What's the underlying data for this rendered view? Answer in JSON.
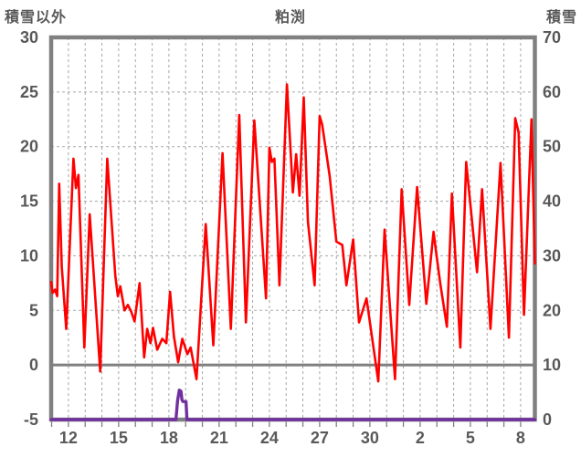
{
  "header": {
    "left_axis_title": "積雪以外",
    "chart_title": "粕渕",
    "right_axis_title": "積雪"
  },
  "chart_data": {
    "type": "line",
    "title": "粕渕",
    "left_axis": {
      "label": "積雪以外",
      "min": -5,
      "max": 30,
      "tick_step": 5,
      "tick_labels": [
        "30",
        "25",
        "20",
        "15",
        "10",
        "5",
        "0",
        "-5"
      ],
      "zero_line": true
    },
    "right_axis": {
      "label": "積雪",
      "min": 0,
      "max": 70,
      "tick_step": 10,
      "tick_labels": [
        "70",
        "60",
        "50",
        "40",
        "30",
        "20",
        "10",
        "0"
      ]
    },
    "x_axis": {
      "day_min": 10.97,
      "day_max": 39.85,
      "gridline_every_day": true,
      "labels": [
        {
          "day": 12,
          "text": "12"
        },
        {
          "day": 15,
          "text": "15"
        },
        {
          "day": 18,
          "text": "18"
        },
        {
          "day": 21,
          "text": "21"
        },
        {
          "day": 24,
          "text": "24"
        },
        {
          "day": 27,
          "text": "27"
        },
        {
          "day": 30,
          "text": "30"
        },
        {
          "day": 33,
          "text": "2"
        },
        {
          "day": 36,
          "text": "5"
        },
        {
          "day": 39,
          "text": "8"
        }
      ]
    },
    "series": [
      {
        "name": "snow-depth",
        "axis": "right",
        "color": "#7030A0",
        "width": 3.4,
        "points": [
          [
            10.97,
            0
          ],
          [
            18.42,
            0
          ],
          [
            18.52,
            3.5
          ],
          [
            18.62,
            5.4
          ],
          [
            18.72,
            5.2
          ],
          [
            18.78,
            3.6
          ],
          [
            18.84,
            3.3
          ],
          [
            19.02,
            3.3
          ],
          [
            19.08,
            0
          ],
          [
            39.85,
            0
          ]
        ]
      },
      {
        "name": "temperature",
        "axis": "left",
        "color": "#FF0000",
        "width": 2.6,
        "points": [
          [
            10.97,
            7.6
          ],
          [
            11.05,
            6.6
          ],
          [
            11.2,
            6.9
          ],
          [
            11.33,
            6.3
          ],
          [
            11.45,
            16.6
          ],
          [
            11.6,
            9.0
          ],
          [
            11.87,
            3.3
          ],
          [
            12.3,
            18.9
          ],
          [
            12.45,
            16.2
          ],
          [
            12.6,
            17.4
          ],
          [
            12.95,
            1.6
          ],
          [
            13.27,
            13.8
          ],
          [
            13.9,
            -0.6
          ],
          [
            14.32,
            18.9
          ],
          [
            14.8,
            8.2
          ],
          [
            14.95,
            6.3
          ],
          [
            15.1,
            7.2
          ],
          [
            15.35,
            5.0
          ],
          [
            15.55,
            5.5
          ],
          [
            15.75,
            4.9
          ],
          [
            15.95,
            4.0
          ],
          [
            16.25,
            7.5
          ],
          [
            16.52,
            0.7
          ],
          [
            16.7,
            3.3
          ],
          [
            16.9,
            2.0
          ],
          [
            17.05,
            3.4
          ],
          [
            17.3,
            1.4
          ],
          [
            17.6,
            2.4
          ],
          [
            17.85,
            2.0
          ],
          [
            18.07,
            6.7
          ],
          [
            18.3,
            2.6
          ],
          [
            18.55,
            0.25
          ],
          [
            18.8,
            2.4
          ],
          [
            19.1,
            1.0
          ],
          [
            19.3,
            1.6
          ],
          [
            19.65,
            -1.3
          ],
          [
            20.2,
            12.9
          ],
          [
            20.65,
            1.8
          ],
          [
            21.2,
            19.4
          ],
          [
            21.7,
            3.3
          ],
          [
            22.2,
            22.9
          ],
          [
            22.6,
            3.9
          ],
          [
            23.1,
            22.4
          ],
          [
            23.8,
            6.1
          ],
          [
            24.0,
            19.9
          ],
          [
            24.15,
            18.6
          ],
          [
            24.3,
            18.9
          ],
          [
            24.6,
            7.3
          ],
          [
            25.05,
            25.7
          ],
          [
            25.4,
            15.8
          ],
          [
            25.6,
            19.3
          ],
          [
            25.8,
            15.5
          ],
          [
            26.05,
            24.5
          ],
          [
            26.3,
            13.1
          ],
          [
            26.7,
            7.3
          ],
          [
            27.0,
            22.8
          ],
          [
            27.15,
            22.0
          ],
          [
            27.6,
            17.3
          ],
          [
            28.0,
            11.3
          ],
          [
            28.35,
            11.0
          ],
          [
            28.6,
            7.3
          ],
          [
            29.0,
            11.5
          ],
          [
            29.35,
            3.9
          ],
          [
            29.8,
            6.1
          ],
          [
            30.5,
            -1.5
          ],
          [
            30.88,
            12.4
          ],
          [
            31.5,
            -1.3
          ],
          [
            31.9,
            16.1
          ],
          [
            32.35,
            5.5
          ],
          [
            32.82,
            16.3
          ],
          [
            33.37,
            5.6
          ],
          [
            33.8,
            12.2
          ],
          [
            33.95,
            10.4
          ],
          [
            34.2,
            7.5
          ],
          [
            34.6,
            3.5
          ],
          [
            34.9,
            15.7
          ],
          [
            35.4,
            1.6
          ],
          [
            35.75,
            18.6
          ],
          [
            36.1,
            13.2
          ],
          [
            36.4,
            8.5
          ],
          [
            36.7,
            16.1
          ],
          [
            37.2,
            3.3
          ],
          [
            37.8,
            18.5
          ],
          [
            38.3,
            2.5
          ],
          [
            38.68,
            22.6
          ],
          [
            38.88,
            21.3
          ],
          [
            39.2,
            4.6
          ],
          [
            39.65,
            22.5
          ],
          [
            39.85,
            9.3
          ]
        ]
      }
    ],
    "style": {
      "border_color": "#808080",
      "zero_line_color": "#808080",
      "gridline_color": "#A6A6A6",
      "text_color": "#595959",
      "background": "#FFFFFF"
    }
  }
}
